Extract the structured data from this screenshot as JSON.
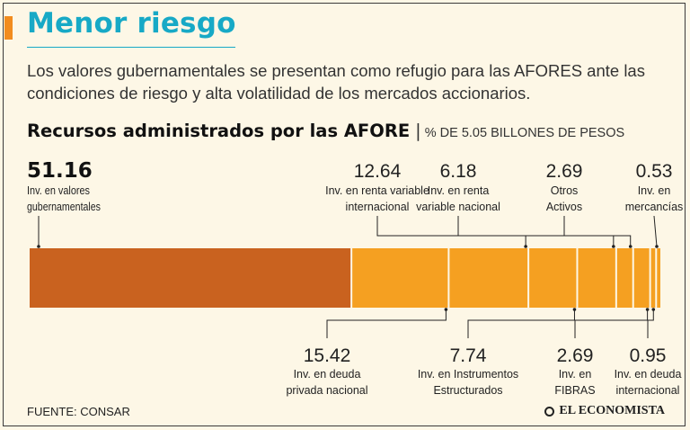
{
  "header": {
    "title": "Menor riesgo",
    "subtitle": "Los valores gubernamentales se presentan como refugio para las AFORES ante las condiciones de riesgo y alta volatilidad de los mercados accionarios."
  },
  "colors": {
    "accent": "#f28c1e",
    "title": "#17a9c6",
    "government": "#c9621f",
    "other": "#f5a021",
    "background": "#fdf7e6"
  },
  "chart_data": {
    "type": "bar",
    "orientation": "horizontal-stacked-100",
    "title": "Recursos administrados por las AFORE",
    "unit": "% DE 5.05 BILLONES DE PESOS",
    "series": [
      {
        "name": "Inv. en valores gubernamentales",
        "value": 51.16,
        "label_lines": [
          "Inv. en valores",
          "gubernamentales"
        ],
        "value_text": "51.16",
        "position": "top"
      },
      {
        "name": "Inv. en deuda privada nacional",
        "value": 15.42,
        "label_lines": [
          "Inv. en deuda",
          "privada nacional"
        ],
        "value_text": "15.42",
        "position": "bottom"
      },
      {
        "name": "Inv. en renta variable internacional",
        "value": 12.64,
        "label_lines": [
          "Inv. en renta variable",
          "internacional"
        ],
        "value_text": "12.64",
        "position": "top"
      },
      {
        "name": "Inv. en Instrumentos Estructurados",
        "value": 7.74,
        "label_lines": [
          "Inv. en Instrumentos",
          "Estructurados"
        ],
        "value_text": "7.74",
        "position": "bottom"
      },
      {
        "name": "Inv. en renta variable nacional",
        "value": 6.18,
        "label_lines": [
          "Inv. en renta",
          "variable nacional"
        ],
        "value_text": "6.18",
        "position": "top"
      },
      {
        "name": "Otros Activos",
        "value": 2.69,
        "label_lines": [
          "Otros",
          "Activos"
        ],
        "value_text": "2.69",
        "position": "top"
      },
      {
        "name": "Inv. en FIBRAS",
        "value": 2.69,
        "label_lines": [
          "Inv. en",
          "FIBRAS"
        ],
        "value_text": "2.69",
        "position": "bottom"
      },
      {
        "name": "Inv. en deuda internacional",
        "value": 0.95,
        "label_lines": [
          "Inv. en deuda",
          "internacional"
        ],
        "value_text": "0.95",
        "position": "bottom"
      },
      {
        "name": "Inv. en mercancías",
        "value": 0.53,
        "label_lines": [
          "Inv. en",
          "mercancías"
        ],
        "value_text": "0.53",
        "position": "top"
      }
    ]
  },
  "footer": {
    "source": "FUENTE: CONSAR",
    "brand": "EL ECONOMISTA"
  }
}
